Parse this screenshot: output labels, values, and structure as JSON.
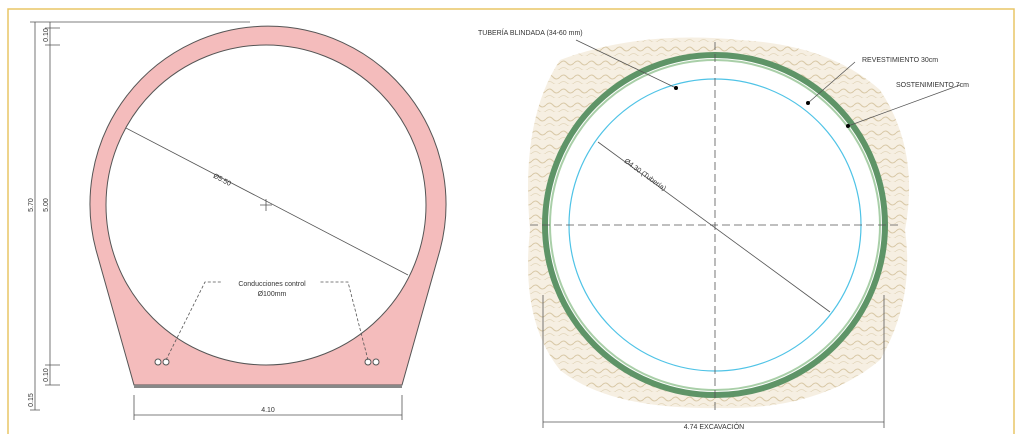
{
  "left": {
    "dim_top": "0.10",
    "dim_total": "5.70",
    "dim_inner": "5.00",
    "dim_bottom": "0.10",
    "dim_base": "0.15",
    "diameter": "Ø5.50",
    "conduits_label": "Conducciones control",
    "conduits_size": "Ø100mm",
    "width": "4.10"
  },
  "right": {
    "pipe": "TUBERÍA BLINDADA (34-60 mm)",
    "lining": "REVESTIMIENTO 30cm",
    "support": "SOSTENIMIENTO 7cm",
    "diameter": "Ø4.30 (Tubería)",
    "excavation": "4.74 EXCAVACIÓN"
  }
}
